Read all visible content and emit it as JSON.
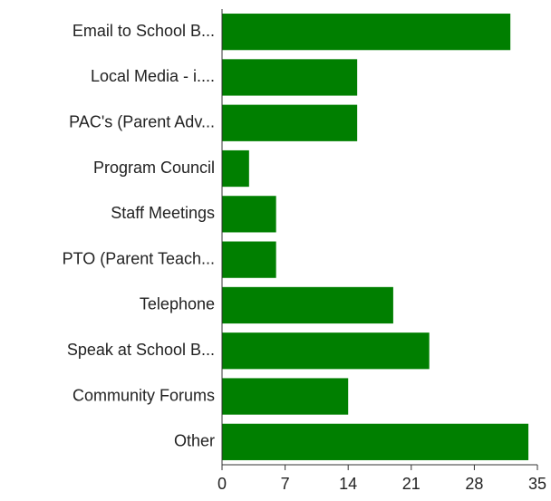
{
  "chart_data": {
    "type": "barh",
    "categories": [
      "Email to School B...",
      "Local Media  - i....",
      "PAC's (Parent Adv...",
      "Program Council",
      "Staff Meetings",
      "PTO (Parent Teach...",
      "Telephone",
      "Speak at School B...",
      "Community Forums",
      "Other"
    ],
    "values": [
      32,
      15,
      15,
      3,
      6,
      6,
      19,
      23,
      14,
      34
    ],
    "color": "#007f00",
    "xlim": [
      0,
      35
    ],
    "xticks": [
      0,
      7,
      14,
      21,
      28,
      35
    ]
  }
}
